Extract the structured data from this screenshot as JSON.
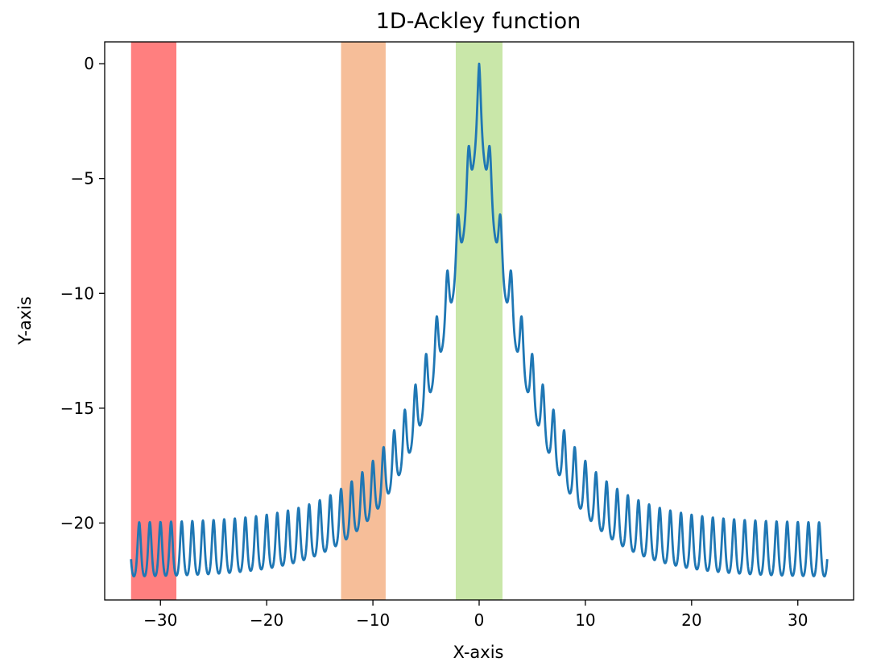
{
  "chart_data": {
    "type": "line",
    "title": "1D-Ackley function",
    "xlabel": "X-axis",
    "ylabel": "Y-axis",
    "xlim": [
      -35.25,
      35.25
    ],
    "ylim": [
      -23.35,
      0.95
    ],
    "x_ticks": [
      -30,
      -20,
      -10,
      0,
      10,
      20,
      30
    ],
    "y_ticks": [
      0,
      -5,
      -10,
      -15,
      -20
    ],
    "x_tick_labels": [
      "−30",
      "−20",
      "−10",
      "0",
      "10",
      "20",
      "30"
    ],
    "y_tick_labels": [
      "0",
      "−5",
      "−10",
      "−15",
      "−20"
    ],
    "grid": false,
    "legend": "none",
    "series": [
      {
        "function": "negative Ackley: -(-20*exp(-0.2*|x|) - exp(cos(2*pi*x)) + 20 + e)",
        "x_range": [
          -32.768,
          32.768
        ],
        "color": "#1f77b4"
      }
    ],
    "bands": [
      {
        "x_range": [
          -32.768,
          -28.5
        ],
        "color": "#ff0000",
        "opacity": 0.5
      },
      {
        "x_range": [
          -13,
          -8.8
        ],
        "color": "#ee7d33",
        "opacity": 0.5
      },
      {
        "x_range": [
          -2.2,
          2.2
        ],
        "color": "#93cf54",
        "opacity": 0.5
      }
    ]
  }
}
